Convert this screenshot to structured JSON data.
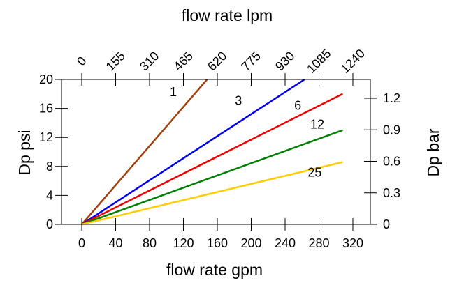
{
  "chart_data": {
    "type": "line",
    "xlabel": "flow rate gpm",
    "ylabel": "Dp psi",
    "x2label": "flow rate lpm",
    "y2label": "Dp bar",
    "xlim": [
      0,
      320
    ],
    "ylim": [
      0,
      20
    ],
    "x_ticks": [
      0,
      40,
      80,
      120,
      160,
      200,
      240,
      280,
      320
    ],
    "y_ticks": [
      0,
      4,
      8,
      12,
      16,
      20
    ],
    "x2_ticks": [
      "0",
      "155",
      "310",
      "465",
      "620",
      "775",
      "930",
      "1085",
      "1240"
    ],
    "y2_ticks": [
      "0",
      "0.3",
      "0.6",
      "0.9",
      "1.2"
    ],
    "y2_tick_psi": [
      0,
      4.35,
      8.7,
      13.05,
      17.4
    ],
    "grid": false,
    "series": [
      {
        "name": "1",
        "color": "#a0410d",
        "x": [
          0,
          148
        ],
        "y": [
          0,
          20
        ],
        "label_at": [
          108,
          17.7
        ]
      },
      {
        "name": "3",
        "color": "#0000ee",
        "x": [
          0,
          263
        ],
        "y": [
          0,
          20
        ],
        "label_at": [
          185,
          16.5
        ]
      },
      {
        "name": "6",
        "color": "#ee0000",
        "x": [
          0,
          308
        ],
        "y": [
          0,
          18
        ],
        "label_at": [
          255,
          15.8
        ]
      },
      {
        "name": "12",
        "color": "#008000",
        "x": [
          0,
          308
        ],
        "y": [
          0,
          13
        ],
        "label_at": [
          278,
          13.2
        ]
      },
      {
        "name": "25",
        "color": "#ffcc00",
        "x": [
          0,
          308
        ],
        "y": [
          0,
          8.6
        ],
        "label_at": [
          275,
          6.6
        ]
      }
    ]
  }
}
